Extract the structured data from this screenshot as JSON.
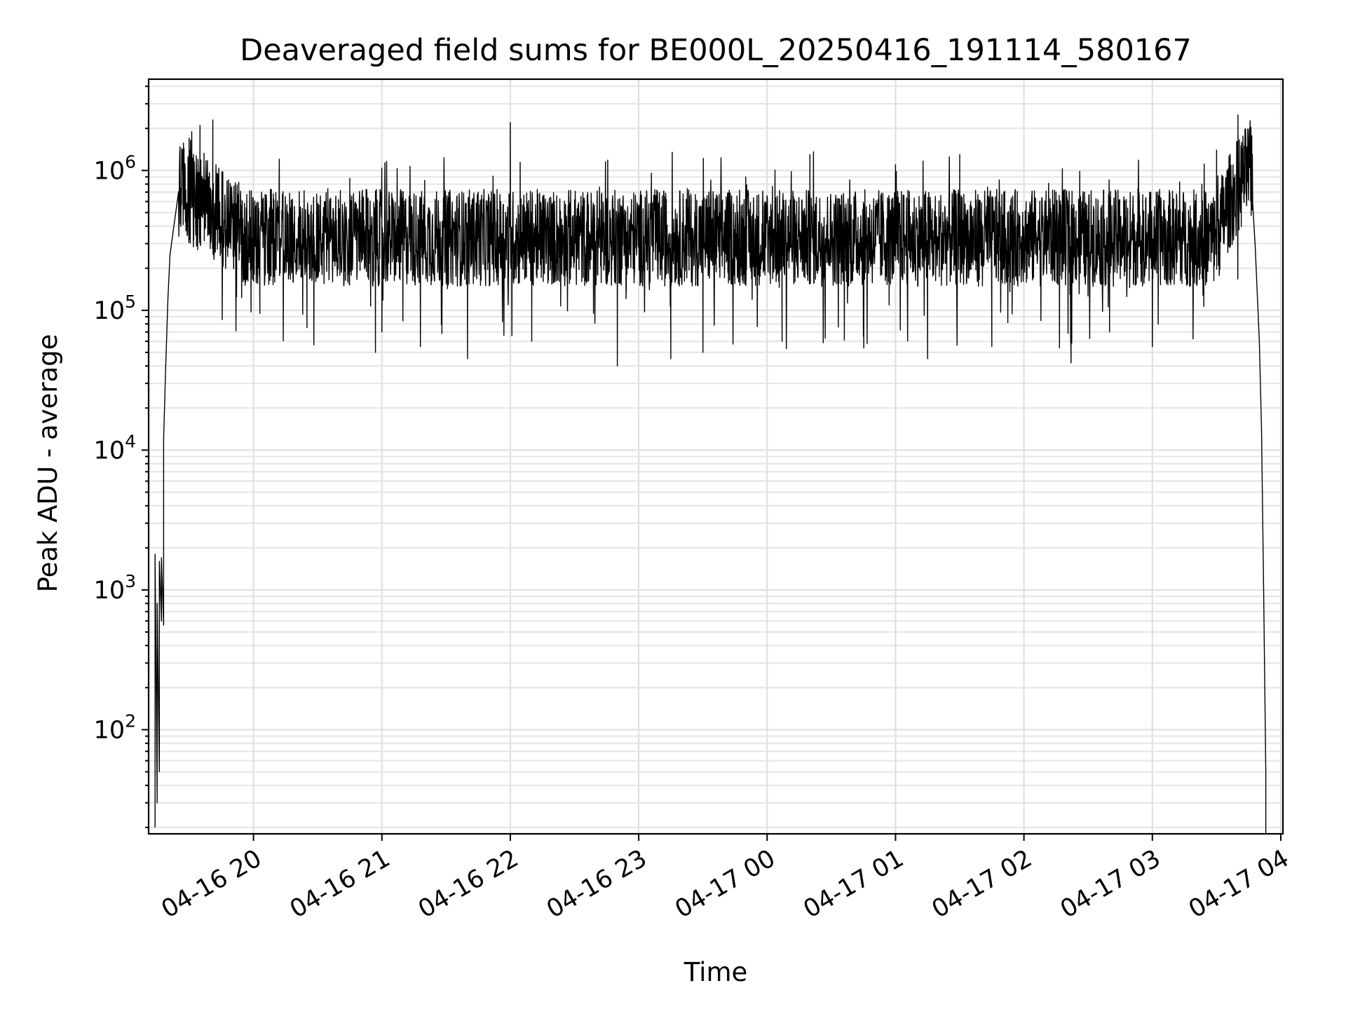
{
  "chart_data": {
    "type": "line",
    "title": "Deaveraged field sums for BE000L_20250416_191114_580167",
    "xlabel": "Time",
    "ylabel": "Peak ADU - average",
    "yscale": "log",
    "grid": true,
    "x_ticks": [
      "04-16 20",
      "04-16 21",
      "04-16 22",
      "04-16 23",
      "04-17 00",
      "04-17 01",
      "04-17 02",
      "04-17 03",
      "04-17 04"
    ],
    "y_ticks": [
      {
        "base": "10",
        "exp": "2",
        "value": 100
      },
      {
        "base": "10",
        "exp": "3",
        "value": 1000
      },
      {
        "base": "10",
        "exp": "4",
        "value": 10000
      },
      {
        "base": "10",
        "exp": "5",
        "value": 100000
      },
      {
        "base": "10",
        "exp": "6",
        "value": 1000000
      }
    ],
    "xlim": [
      "2025-04-16 19:11",
      "2025-04-17 04:01"
    ],
    "ylim": [
      18,
      4500000
    ],
    "line_color": "#000000",
    "series": [
      {
        "values": [
          [
            "2025-04-16 19:14",
            20
          ],
          [
            "2025-04-16 19:14",
            1800
          ],
          [
            "2025-04-16 19:15",
            30
          ],
          [
            "2025-04-16 19:15",
            800
          ],
          [
            "2025-04-16 19:16",
            50
          ],
          [
            "2025-04-16 19:16",
            1600
          ],
          [
            "2025-04-16 19:17",
            600
          ],
          [
            "2025-04-16 19:17",
            1700
          ],
          [
            "2025-04-16 19:18",
            560
          ],
          [
            "2025-04-16 19:18",
            12000
          ],
          [
            "2025-04-16 19:19",
            40000
          ],
          [
            "2025-04-16 19:20",
            120000
          ],
          [
            "2025-04-16 19:21",
            250000
          ],
          [
            "2025-04-16 19:23",
            420000
          ],
          [
            "2025-04-16 19:25",
            700000
          ],
          [
            "2025-04-16 19:27",
            1050000
          ],
          [
            "2025-04-16 19:30",
            800000
          ],
          [
            "2025-04-16 19:32",
            1300000
          ],
          [
            "2025-04-16 19:34",
            700000
          ],
          [
            "2025-04-16 19:35",
            2100000
          ],
          [
            "2025-04-16 19:37",
            600000
          ],
          [
            "2025-04-16 19:39",
            900000
          ],
          [
            "2025-04-16 19:40",
            350000
          ],
          [
            "2025-04-16 19:41",
            2300000
          ],
          [
            "2025-04-16 19:43",
            400000
          ],
          [
            "2025-04-16 19:46",
            300000
          ],
          [
            "2025-04-16 19:49",
            500000
          ],
          [
            "2025-04-16 19:52",
            250000
          ],
          [
            "2025-04-16 19:55",
            450000
          ],
          [
            "2025-04-16 20:03",
            95000
          ],
          [
            "2025-04-16 20:12",
            900000
          ],
          [
            "2025-04-16 20:25",
            75000
          ],
          [
            "2025-04-16 20:45",
            880000
          ],
          [
            "2025-04-16 20:57",
            50000
          ],
          [
            "2025-04-16 21:00",
            70000
          ],
          [
            "2025-04-16 21:18",
            55000
          ],
          [
            "2025-04-16 21:20",
            850000
          ],
          [
            "2025-04-16 21:40",
            45000
          ],
          [
            "2025-04-16 21:45",
            700000
          ],
          [
            "2025-04-16 22:00",
            2200000
          ],
          [
            "2025-04-16 22:10",
            60000
          ],
          [
            "2025-04-16 22:50",
            40000
          ],
          [
            "2025-04-16 23:15",
            45000
          ],
          [
            "2025-04-16 23:30",
            50000
          ],
          [
            "2025-04-16 23:50",
            900000
          ],
          [
            "2025-04-17 00:07",
            60000
          ],
          [
            "2025-04-17 00:20",
            1300000
          ],
          [
            "2025-04-17 00:45",
            65000
          ],
          [
            "2025-04-17 01:00",
            1100000
          ],
          [
            "2025-04-17 01:15",
            45000
          ],
          [
            "2025-04-17 01:30",
            1300000
          ],
          [
            "2025-04-17 01:45",
            55000
          ],
          [
            "2025-04-17 02:05",
            300000
          ],
          [
            "2025-04-17 02:15",
            700000
          ],
          [
            "2025-04-17 02:22",
            42000
          ],
          [
            "2025-04-17 02:40",
            70000
          ],
          [
            "2025-04-17 03:00",
            55000
          ],
          [
            "2025-04-17 03:10",
            280000
          ],
          [
            "2025-04-17 03:20",
            500000
          ],
          [
            "2025-04-17 03:30",
            1400000
          ],
          [
            "2025-04-17 03:36",
            800000
          ],
          [
            "2025-04-17 03:40",
            2500000
          ],
          [
            "2025-04-17 03:43",
            1500000
          ],
          [
            "2025-04-17 03:46",
            900000
          ],
          [
            "2025-04-17 03:48",
            300000
          ],
          [
            "2025-04-17 03:50",
            60000
          ],
          [
            "2025-04-17 03:51",
            14000
          ],
          [
            "2025-04-17 03:52",
            1000
          ],
          [
            "2025-04-17 03:53",
            50
          ],
          [
            "2025-04-17 03:53",
            18
          ]
        ]
      }
    ]
  }
}
